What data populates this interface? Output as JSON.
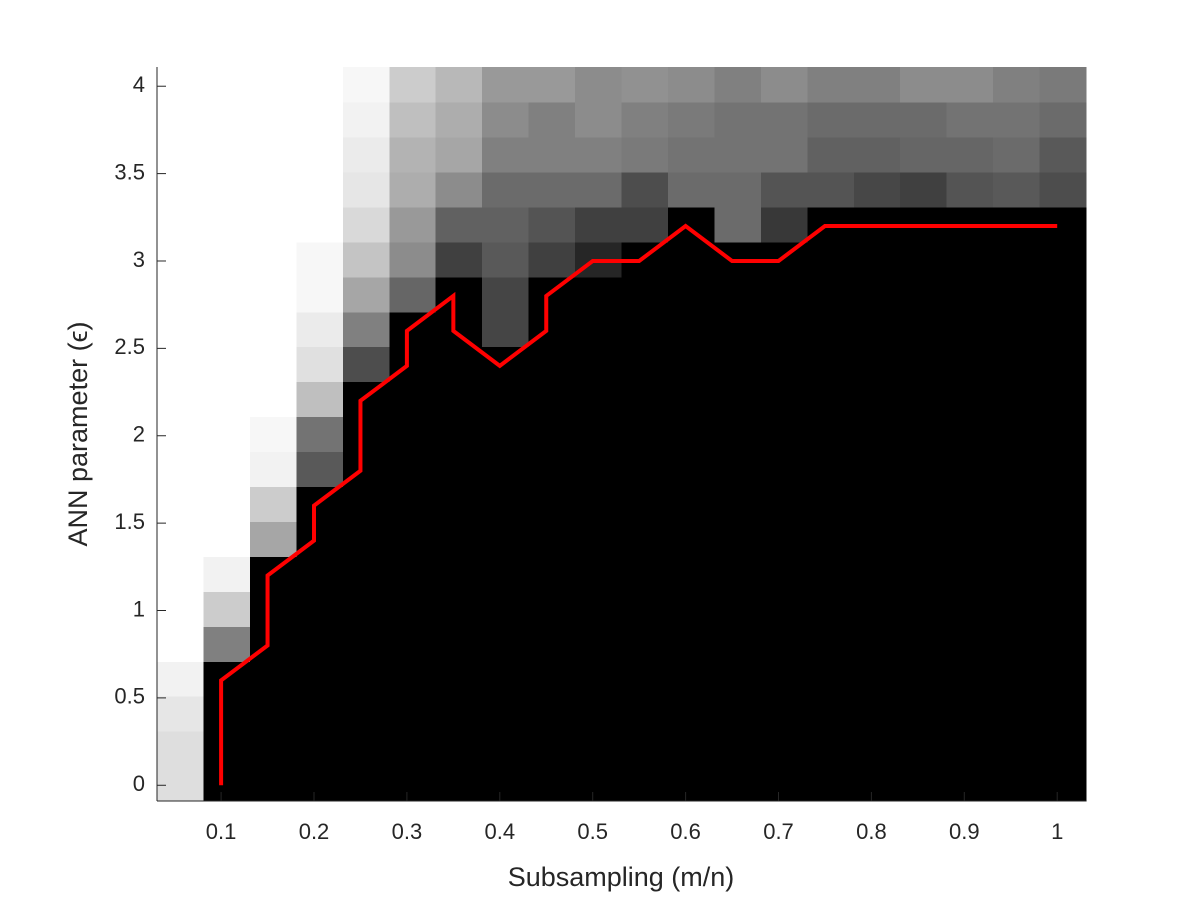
{
  "chart_data": {
    "type": "heatmap",
    "colormap": "gray",
    "xlabel": "Subsampling (m/n)",
    "ylabel": "ANN parameter (ϵ)",
    "xlim": [
      0.031,
      1.031
    ],
    "ylim": [
      -0.09,
      4.11
    ],
    "xticks": [
      0.1,
      0.2,
      0.3,
      0.4,
      0.5,
      0.6,
      0.7,
      0.8,
      0.9,
      1
    ],
    "yticks": [
      0,
      0.5,
      1,
      1.5,
      2,
      2.5,
      3,
      3.5,
      4
    ],
    "z": [
      [
        0.87,
        0,
        0,
        0,
        0,
        0,
        0,
        0,
        0,
        0,
        0,
        0,
        0,
        0,
        0,
        0,
        0,
        0,
        0,
        0
      ],
      [
        0.87,
        0,
        0,
        0,
        0,
        0,
        0,
        0,
        0,
        0,
        0,
        0,
        0,
        0,
        0,
        0,
        0,
        0,
        0,
        0
      ],
      [
        0.9,
        0,
        0,
        0,
        0,
        0,
        0,
        0,
        0,
        0,
        0,
        0,
        0,
        0,
        0,
        0,
        0,
        0,
        0,
        0
      ],
      [
        0.95,
        0,
        0,
        0,
        0,
        0,
        0,
        0,
        0,
        0,
        0,
        0,
        0,
        0,
        0,
        0,
        0,
        0,
        0,
        0
      ],
      [
        1,
        0.5,
        0,
        0,
        0,
        0,
        0,
        0,
        0,
        0,
        0,
        0,
        0,
        0,
        0,
        0,
        0,
        0,
        0,
        0
      ],
      [
        1,
        0.8,
        0,
        0,
        0,
        0,
        0,
        0,
        0,
        0,
        0,
        0,
        0,
        0,
        0,
        0,
        0,
        0,
        0,
        0
      ],
      [
        1,
        0.95,
        0,
        0,
        0,
        0,
        0,
        0,
        0,
        0,
        0,
        0,
        0,
        0,
        0,
        0,
        0,
        0,
        0,
        0
      ],
      [
        1,
        1,
        0.65,
        0,
        0,
        0,
        0,
        0,
        0,
        0,
        0,
        0,
        0,
        0,
        0,
        0,
        0,
        0,
        0,
        0
      ],
      [
        1,
        1,
        0.8,
        0,
        0,
        0,
        0,
        0,
        0,
        0,
        0,
        0,
        0,
        0,
        0,
        0,
        0,
        0,
        0,
        0
      ],
      [
        1,
        1,
        0.95,
        0.35,
        0,
        0,
        0,
        0,
        0,
        0,
        0,
        0,
        0,
        0,
        0,
        0,
        0,
        0,
        0,
        0
      ],
      [
        1,
        1,
        0.97,
        0.45,
        0,
        0,
        0,
        0,
        0,
        0,
        0,
        0,
        0,
        0,
        0,
        0,
        0,
        0,
        0,
        0
      ],
      [
        1,
        1,
        1,
        0.75,
        0,
        0,
        0,
        0,
        0,
        0,
        0,
        0,
        0,
        0,
        0,
        0,
        0,
        0,
        0,
        0
      ],
      [
        1,
        1,
        1,
        0.88,
        0.3,
        0,
        0,
        0,
        0,
        0,
        0,
        0,
        0,
        0,
        0,
        0,
        0,
        0,
        0,
        0
      ],
      [
        1,
        1,
        1,
        0.92,
        0.5,
        0,
        0,
        0.27,
        0,
        0,
        0,
        0,
        0,
        0,
        0,
        0,
        0,
        0,
        0,
        0
      ],
      [
        1,
        1,
        1,
        0.97,
        0.65,
        0.4,
        0,
        0.27,
        0,
        0,
        0,
        0,
        0,
        0,
        0,
        0,
        0,
        0,
        0,
        0
      ],
      [
        1,
        1,
        1,
        0.97,
        0.77,
        0.55,
        0.25,
        0.35,
        0.25,
        0.15,
        0,
        0,
        0,
        0,
        0,
        0,
        0,
        0,
        0,
        0
      ],
      [
        1,
        1,
        1,
        1,
        0.85,
        0.6,
        0.38,
        0.38,
        0.33,
        0.25,
        0.25,
        0,
        0.42,
        0.22,
        0,
        0,
        0,
        0,
        0,
        0
      ],
      [
        1,
        1,
        1,
        1,
        0.9,
        0.68,
        0.55,
        0.42,
        0.42,
        0.42,
        0.3,
        0.42,
        0.42,
        0.33,
        0.33,
        0.28,
        0.25,
        0.33,
        0.35,
        0.3
      ],
      [
        1,
        1,
        1,
        1,
        0.92,
        0.7,
        0.65,
        0.5,
        0.5,
        0.5,
        0.48,
        0.45,
        0.45,
        0.45,
        0.38,
        0.38,
        0.4,
        0.4,
        0.42,
        0.35
      ],
      [
        1,
        1,
        1,
        1,
        0.95,
        0.75,
        0.68,
        0.55,
        0.5,
        0.55,
        0.5,
        0.48,
        0.45,
        0.45,
        0.42,
        0.42,
        0.42,
        0.45,
        0.45,
        0.42
      ],
      [
        1,
        1,
        1,
        1,
        0.97,
        0.8,
        0.72,
        0.6,
        0.6,
        0.55,
        0.57,
        0.55,
        0.5,
        0.55,
        0.5,
        0.5,
        0.55,
        0.55,
        0.5,
        0.48
      ]
    ],
    "line": {
      "color": "#ff0000",
      "x": [
        0.1,
        0.1,
        0.15,
        0.15,
        0.2,
        0.2,
        0.25,
        0.25,
        0.3,
        0.3,
        0.35,
        0.35,
        0.4,
        0.45,
        0.45,
        0.5,
        0.55,
        0.6,
        0.65,
        0.7,
        0.75,
        1
      ],
      "y": [
        0,
        0.6,
        0.8,
        1.2,
        1.4,
        1.6,
        1.8,
        2.2,
        2.4,
        2.6,
        2.8,
        2.6,
        2.4,
        2.6,
        2.8,
        3.0,
        3.0,
        3.2,
        3.0,
        3.0,
        3.2,
        3.2
      ]
    }
  }
}
